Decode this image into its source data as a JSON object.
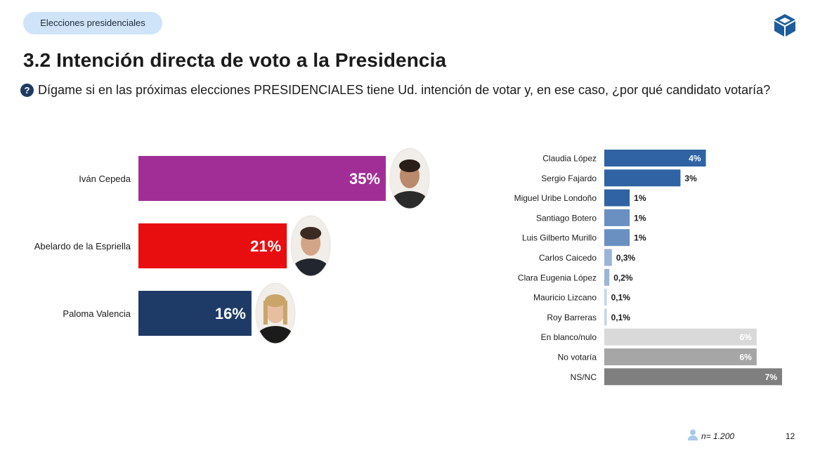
{
  "section_pill": "Elecciones presidenciales",
  "title": "3.2 Intención directa de voto a la Presidencia",
  "question": "Dígame si en las próximas elecciones PRESIDENCIALES tiene Ud. intención de votar y, en ese caso, ¿por qué candidato votaría?",
  "footer": {
    "sample": "n= 1.200",
    "page": "12"
  },
  "colors": {
    "brand": "#1d5d9b",
    "question_icon": "#1f3a60"
  },
  "chart_data": [
    {
      "type": "bar",
      "orientation": "horizontal",
      "categories": [
        "Iván Cepeda",
        "Abelardo de la Espriella",
        "Paloma Valencia"
      ],
      "values": [
        35,
        21,
        16
      ],
      "labels": [
        "35%",
        "21%",
        "16%"
      ],
      "colors": [
        "#a12e96",
        "#e80e10",
        "#1e3a66"
      ],
      "xlim": [
        0,
        35
      ],
      "grid": false,
      "legend": "none"
    },
    {
      "type": "bar",
      "orientation": "horizontal",
      "categories": [
        "Claudia López",
        "Sergio Fajardo",
        "Miguel Uribe Londoño",
        "Santiago Botero",
        "Luis Gilberto Murillo",
        "Carlos Caicedo",
        "Clara Eugenia López",
        "Mauricio Lizcano",
        "Roy Barreras",
        "En blanco/nulo",
        "No votaría",
        "NS/NC"
      ],
      "values": [
        4,
        3,
        1,
        1,
        1,
        0.3,
        0.2,
        0.1,
        0.1,
        6,
        6,
        7
      ],
      "labels": [
        "4%",
        "3%",
        "1%",
        "1%",
        "1%",
        "0,3%",
        "0,2%",
        "0,1%",
        "0,1%",
        "6%",
        "6%",
        "7%"
      ],
      "colors": [
        "#2f63a3",
        "#2f63a3",
        "#2f63a3",
        "#6a90c2",
        "#6a90c2",
        "#9cb5d6",
        "#9cb5d6",
        "#c8d5e8",
        "#c8d5e8",
        "#d9d9d9",
        "#a6a6a6",
        "#7f7f7f"
      ],
      "label_inside": [
        true,
        false,
        false,
        false,
        false,
        false,
        false,
        false,
        false,
        true,
        true,
        true
      ],
      "xlim": [
        0,
        7
      ],
      "grid": false,
      "legend": "none"
    }
  ]
}
